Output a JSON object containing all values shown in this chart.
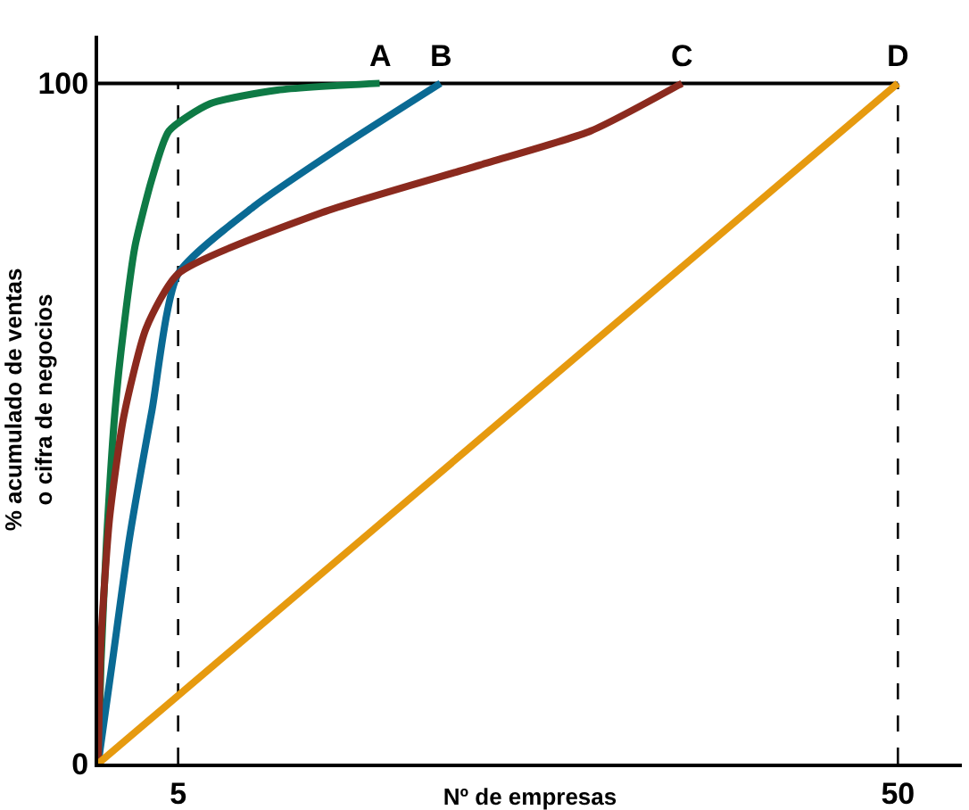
{
  "chart_data": {
    "type": "line",
    "xlabel": "Nº de empresas",
    "ylabel": "% acumulado de ventas\no cifra de negocios",
    "xlim": [
      0,
      54
    ],
    "ylim": [
      0,
      107
    ],
    "xticks": [
      5,
      50
    ],
    "yticks": [
      0,
      100
    ],
    "grid": false,
    "legend": false,
    "marker": "none",
    "line_style": "solid",
    "series": [
      {
        "name": "A",
        "color": "#0e7a45",
        "x": [
          0,
          0.18,
          0.53,
          1.06,
          1.6,
          2.3,
          3.37,
          4.43,
          7,
          11.2,
          17.6
        ],
        "values": [
          0,
          15,
          33,
          52,
          64,
          76,
          86,
          93,
          97,
          99,
          100
        ]
      },
      {
        "name": "B",
        "color": "#0a6a94",
        "x": [
          0,
          0.89,
          1.95,
          3.37,
          5,
          9.8,
          15.4,
          21.4
        ],
        "values": [
          0,
          15,
          33,
          52,
          72,
          82,
          91,
          100
        ]
      },
      {
        "name": "C",
        "color": "#8b2a1e",
        "x": [
          0,
          0.18,
          0.71,
          1.6,
          3,
          5,
          14,
          23.9,
          30.8,
          36.5
        ],
        "values": [
          0,
          18,
          36,
          51,
          64,
          72,
          81,
          88,
          93,
          100
        ]
      },
      {
        "name": "D",
        "color": "#e69a0f",
        "x": [
          0,
          50
        ],
        "values": [
          0,
          100
        ]
      }
    ],
    "ref_lines": [
      {
        "axis": "x",
        "value": 5,
        "line_style": "dashed",
        "color": "#000000"
      },
      {
        "axis": "x",
        "value": 50,
        "line_style": "dashed",
        "color": "#000000"
      },
      {
        "axis": "y",
        "value": 100,
        "line_style": "solid",
        "color": "#000000"
      }
    ]
  }
}
